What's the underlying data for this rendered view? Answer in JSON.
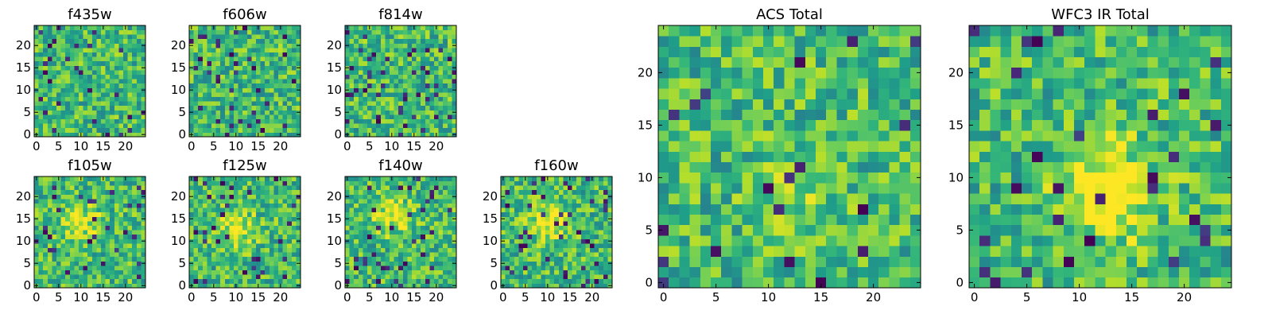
{
  "figure": {
    "background": "#ffffff",
    "colormap": "viridis",
    "grid_size": 25
  },
  "chart_data": [
    {
      "type": "heatmap",
      "title": "f435w",
      "xlim": [
        0,
        24
      ],
      "ylim": [
        0,
        24
      ],
      "xticks": [
        0,
        5,
        10,
        15,
        20
      ],
      "yticks": [
        0,
        5,
        10,
        15,
        20
      ],
      "xtick_labels": [
        "0",
        "5",
        "10",
        "15",
        "20"
      ],
      "ytick_labels": [
        "0",
        "5",
        "10",
        "15",
        "20"
      ],
      "seed": 435,
      "blob": 0.0,
      "dark_fraction": 0.05
    },
    {
      "type": "heatmap",
      "title": "f606w",
      "xlim": [
        0,
        24
      ],
      "ylim": [
        0,
        24
      ],
      "xticks": [
        0,
        5,
        10,
        15,
        20
      ],
      "yticks": [
        0,
        5,
        10,
        15,
        20
      ],
      "xtick_labels": [
        "0",
        "5",
        "10",
        "15",
        "20"
      ],
      "ytick_labels": [
        "0",
        "5",
        "10",
        "15",
        "20"
      ],
      "seed": 606,
      "blob": 0.0,
      "dark_fraction": 0.05
    },
    {
      "type": "heatmap",
      "title": "f814w",
      "xlim": [
        0,
        24
      ],
      "ylim": [
        0,
        24
      ],
      "xticks": [
        0,
        5,
        10,
        15,
        20
      ],
      "yticks": [
        0,
        5,
        10,
        15,
        20
      ],
      "xtick_labels": [
        "0",
        "5",
        "10",
        "15",
        "20"
      ],
      "ytick_labels": [
        "0",
        "5",
        "10",
        "15",
        "20"
      ],
      "seed": 814,
      "blob": 0.0,
      "dark_fraction": 0.06
    },
    {
      "type": "heatmap",
      "title": "f105w",
      "xlim": [
        0,
        24
      ],
      "ylim": [
        0,
        24
      ],
      "xticks": [
        0,
        5,
        10,
        15,
        20
      ],
      "yticks": [
        0,
        5,
        10,
        15,
        20
      ],
      "xtick_labels": [
        "0",
        "5",
        "10",
        "15",
        "20"
      ],
      "ytick_labels": [
        "0",
        "5",
        "10",
        "15",
        "20"
      ],
      "seed": 105,
      "blob": 0.25,
      "dark_fraction": 0.04
    },
    {
      "type": "heatmap",
      "title": "f125w",
      "xlim": [
        0,
        24
      ],
      "ylim": [
        0,
        24
      ],
      "xticks": [
        0,
        5,
        10,
        15,
        20
      ],
      "yticks": [
        0,
        5,
        10,
        15,
        20
      ],
      "xtick_labels": [
        "0",
        "5",
        "10",
        "15",
        "20"
      ],
      "ytick_labels": [
        "0",
        "5",
        "10",
        "15",
        "20"
      ],
      "seed": 125,
      "blob": 0.3,
      "dark_fraction": 0.04
    },
    {
      "type": "heatmap",
      "title": "f140w",
      "xlim": [
        0,
        24
      ],
      "ylim": [
        0,
        24
      ],
      "xticks": [
        0,
        5,
        10,
        15,
        20
      ],
      "yticks": [
        0,
        5,
        10,
        15,
        20
      ],
      "xtick_labels": [
        "0",
        "5",
        "10",
        "15",
        "20"
      ],
      "ytick_labels": [
        "0",
        "5",
        "10",
        "15",
        "20"
      ],
      "seed": 140,
      "blob": 0.3,
      "dark_fraction": 0.05
    },
    {
      "type": "heatmap",
      "title": "f160w",
      "xlim": [
        0,
        24
      ],
      "ylim": [
        0,
        24
      ],
      "xticks": [
        0,
        5,
        10,
        15,
        20
      ],
      "yticks": [
        0,
        5,
        10,
        15,
        20
      ],
      "xtick_labels": [
        "0",
        "5",
        "10",
        "15",
        "20"
      ],
      "ytick_labels": [
        "0",
        "5",
        "10",
        "15",
        "20"
      ],
      "seed": 160,
      "blob": 0.35,
      "dark_fraction": 0.06
    },
    {
      "type": "heatmap",
      "title": "ACS Total",
      "xlim": [
        0,
        24
      ],
      "ylim": [
        0,
        24
      ],
      "xticks": [
        0,
        5,
        10,
        15,
        20
      ],
      "yticks": [
        0,
        5,
        10,
        15,
        20
      ],
      "xtick_labels": [
        "0",
        "5",
        "10",
        "15",
        "20"
      ],
      "ytick_labels": [
        "0",
        "5",
        "10",
        "15",
        "20"
      ],
      "seed": 901,
      "blob": 0.1,
      "dark_fraction": 0.03
    },
    {
      "type": "heatmap",
      "title": "WFC3 IR Total",
      "xlim": [
        0,
        24
      ],
      "ylim": [
        0,
        24
      ],
      "xticks": [
        0,
        5,
        10,
        15,
        20
      ],
      "yticks": [
        0,
        5,
        10,
        15,
        20
      ],
      "xtick_labels": [
        "0",
        "5",
        "10",
        "15",
        "20"
      ],
      "ytick_labels": [
        "0",
        "5",
        "10",
        "15",
        "20"
      ],
      "seed": 902,
      "blob": 0.45,
      "dark_fraction": 0.04
    }
  ]
}
